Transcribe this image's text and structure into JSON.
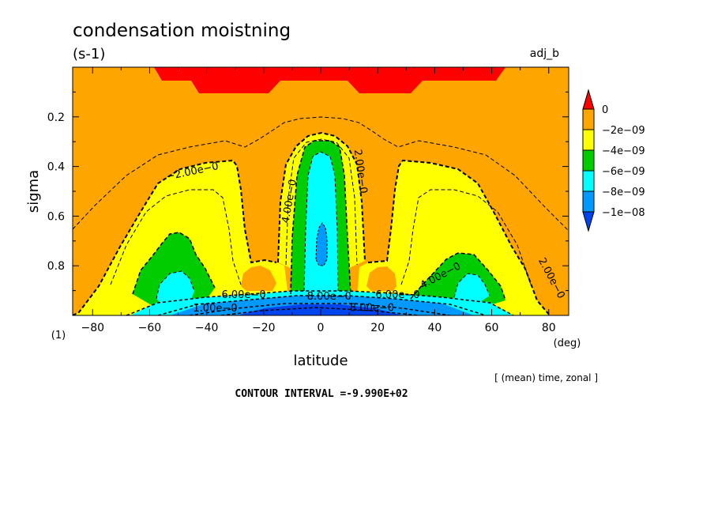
{
  "chart_data": {
    "type": "heatmap",
    "title": "condensation moistning",
    "units": "(s-1)",
    "experiment": "adj_b",
    "xlabel": "latitude",
    "xunit": "(deg)",
    "ylabel": "sigma",
    "yunit": "(1)",
    "averaging": "[ (mean) time, zonal ]",
    "contour_interval_text": "CONTOUR INTERVAL =-9.990E+02",
    "xlim": [
      -87,
      87
    ],
    "ylim": [
      1.0,
      0.0
    ],
    "x_ticks": [
      -80,
      -60,
      -40,
      -20,
      0,
      20,
      40,
      60,
      80
    ],
    "x_tick_labels": [
      "−80",
      "−60",
      "−40",
      "−20",
      "0",
      "20",
      "40",
      "60",
      "80"
    ],
    "y_ticks": [
      0.2,
      0.4,
      0.6,
      0.8
    ],
    "y_tick_labels": [
      "0.2",
      "0.4",
      "0.6",
      "0.8"
    ],
    "colorbar": {
      "levels": [
        0,
        -2e-09,
        -4e-09,
        -6e-09,
        -8e-09,
        -1e-08
      ],
      "labels": [
        "0",
        "−2e−09",
        "−4e−09",
        "−6e−09",
        "−8e−09",
        "−1e−08"
      ],
      "colors": [
        "#ff0000",
        "#ffa500",
        "#ffff00",
        "#00cc00",
        "#00ffff",
        "#0099ff",
        "#0044ee"
      ]
    },
    "contour_labels": [
      {
        "text": "−2.00e−0",
        "lat": -45,
        "sigma": 0.42,
        "angle": -12
      },
      {
        "text": "4.00e−0",
        "lat": -11,
        "sigma": 0.54,
        "angle": -80
      },
      {
        "text": "2.00e−0",
        "lat": 14,
        "sigma": 0.42,
        "angle": 82
      },
      {
        "text": "4.00e−0",
        "lat": 42,
        "sigma": 0.84,
        "angle": -28
      },
      {
        "text": "2.00e−0",
        "lat": 81,
        "sigma": 0.85,
        "angle": 62
      },
      {
        "text": "6.00e−0",
        "lat": -27,
        "sigma": 0.917,
        "angle": 0
      },
      {
        "text": "8.00e−0",
        "lat": 3,
        "sigma": 0.924,
        "angle": 0
      },
      {
        "text": "6.00e−0",
        "lat": 27,
        "sigma": 0.917,
        "angle": 0
      },
      {
        "text": "1.00e−0",
        "lat": -37,
        "sigma": 0.972,
        "angle": 0
      },
      {
        "text": "8.00e−0",
        "lat": 18,
        "sigma": 0.97,
        "angle": 0
      }
    ]
  }
}
